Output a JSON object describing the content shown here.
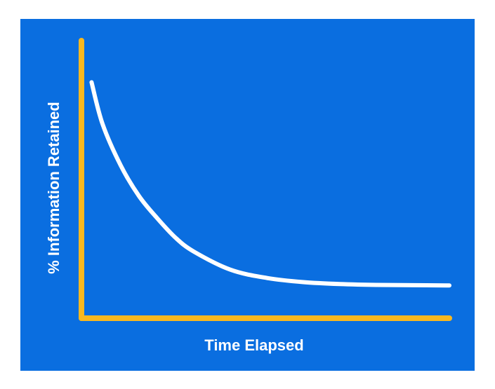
{
  "colors": {
    "background": "#0a6ee0",
    "axis": "#f9b81f",
    "curve": "#ffffff",
    "page": "#ffffff"
  },
  "chart_data": {
    "type": "line",
    "title": "",
    "xlabel": "Time Elapsed",
    "ylabel": "% Information Retained",
    "x_ticks": [],
    "y_ticks": [],
    "grid": false,
    "legend": "none",
    "xlim": [
      0,
      10
    ],
    "ylim": [
      0,
      100
    ],
    "series": [
      {
        "x": [
          0.2,
          0.5,
          1,
          1.5,
          2,
          2.5,
          3,
          4,
          5,
          6,
          7,
          8,
          9,
          10
        ],
        "values": [
          85,
          70,
          55,
          44,
          36,
          29,
          24,
          17.5,
          14.5,
          13,
          12.3,
          12,
          11.9,
          11.8
        ]
      }
    ]
  }
}
